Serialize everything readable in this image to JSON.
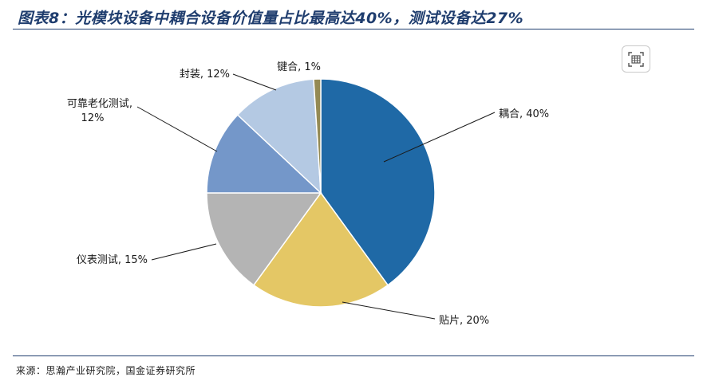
{
  "figure": {
    "title": "图表8：光模块设备中耦合设备价值量占比最高达40%，测试设备达27%",
    "source": "来源：思瀚产业研究院，国金证券研究所",
    "expand_icon": "table-expand-icon"
  },
  "chart_data": {
    "type": "pie",
    "start_angle_deg": 0,
    "direction": "clockwise",
    "slices": [
      {
        "label": "耦合, 40%",
        "name": "耦合",
        "value": 40,
        "color": "#1f69a6"
      },
      {
        "label": "贴片, 20%",
        "name": "贴片",
        "value": 20,
        "color": "#e4c765"
      },
      {
        "label": "仪表测试, 15%",
        "name": "仪表测试",
        "value": 15,
        "color": "#b4b4b4"
      },
      {
        "label": "可靠老化测试,\n12%",
        "name": "可靠老化测试",
        "value": 12,
        "color": "#7497c9"
      },
      {
        "label": "封装, 12%",
        "name": "封装",
        "value": 12,
        "color": "#b4c9e3"
      },
      {
        "label": "键合, 1%",
        "name": "键合",
        "value": 1,
        "color": "#948a54"
      }
    ]
  }
}
